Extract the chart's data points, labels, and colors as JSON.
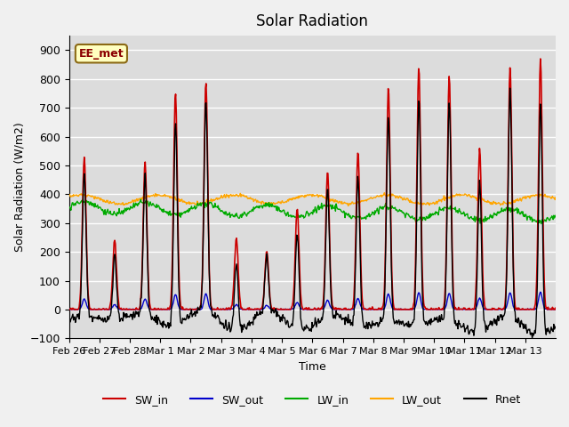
{
  "title": "Solar Radiation",
  "ylabel": "Solar Radiation (W/m2)",
  "xlabel": "Time",
  "ylim": [
    -100,
    950
  ],
  "yticks": [
    -100,
    0,
    100,
    200,
    300,
    400,
    500,
    600,
    700,
    800,
    900
  ],
  "xtick_labels": [
    "Feb 26",
    "Feb 27",
    "Feb 28",
    "Mar 1",
    "Mar 2",
    "Mar 3",
    "Mar 4",
    "Mar 5",
    "Mar 6",
    "Mar 7",
    "Mar 8",
    "Mar 9",
    "Mar 10",
    "Mar 11",
    "Mar 12",
    "Mar 13"
  ],
  "watermark": "EE_met",
  "watermark_color": "#8B0000",
  "watermark_bg": "#FFFFC0",
  "bg_color": "#DCDCDC",
  "grid_color": "#FFFFFF",
  "series_colors": {
    "SW_in": "#CC0000",
    "SW_out": "#0000CC",
    "LW_in": "#00AA00",
    "LW_out": "#FFA500",
    "Rnet": "#000000"
  },
  "n_days": 16,
  "points_per_day": 48,
  "sw_peaks": [
    530,
    240,
    510,
    750,
    790,
    250,
    200,
    350,
    480,
    550,
    770,
    840,
    810,
    560,
    840,
    870
  ]
}
